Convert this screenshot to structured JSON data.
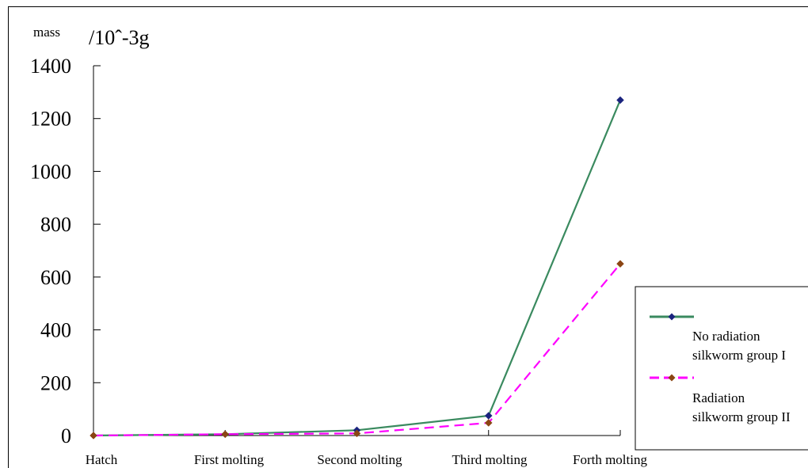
{
  "chart_data": {
    "type": "line",
    "ylabel_prefix": "mass",
    "ylabel_unit": "/10^-3g",
    "categories": [
      "Hatch",
      "First molting",
      "Second molting",
      "Third molting",
      "Forth molting"
    ],
    "yticks": [
      "0",
      "200",
      "400",
      "600",
      "800",
      "1000",
      "1200",
      "1400"
    ],
    "ylim": [
      0,
      1400
    ],
    "grid": false,
    "legend_position": "right",
    "series": [
      {
        "name_line1": "No radiation",
        "name_line2": "silkworm group I",
        "values": [
          0,
          5,
          20,
          75,
          1270
        ],
        "color": "#3a8a5f",
        "marker_color": "#1a237e",
        "dashed": false
      },
      {
        "name_line1": "Radiation",
        "name_line2": "silkworm group II",
        "values": [
          0,
          5,
          8,
          48,
          650
        ],
        "color": "#ff00ff",
        "marker_color": "#8b4513",
        "dashed": true
      }
    ]
  }
}
